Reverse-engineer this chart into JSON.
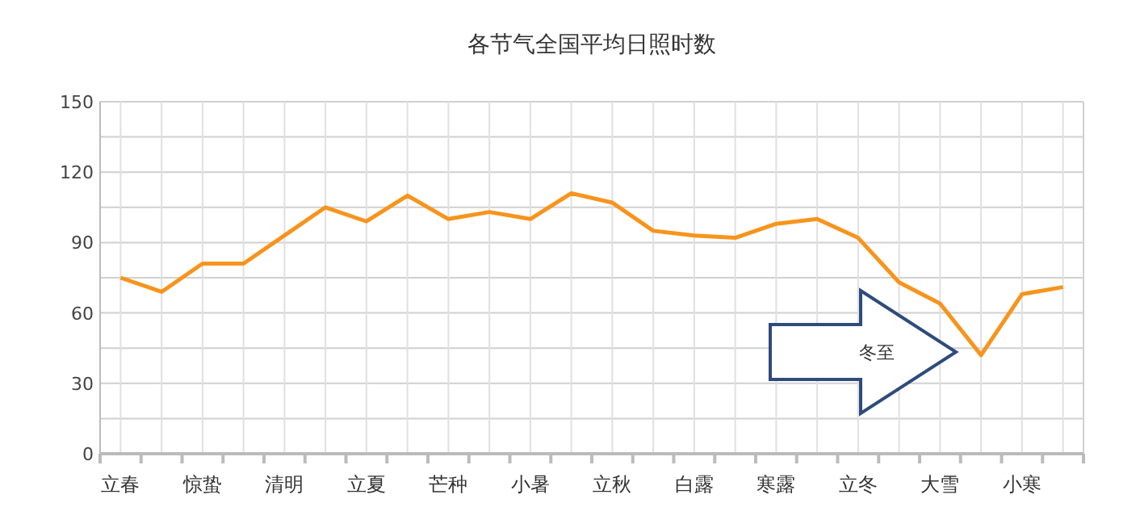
{
  "chart_data": {
    "type": "line",
    "title": "各节气全国平均日照时数",
    "categories": [
      "立春",
      null,
      "惊蛰",
      null,
      "清明",
      null,
      "立夏",
      null,
      "芒种",
      null,
      "小暑",
      null,
      "立秋",
      null,
      "白露",
      null,
      "寒露",
      null,
      "立冬",
      null,
      "大雪",
      null,
      "小寒",
      null
    ],
    "series": [
      {
        "color": "#f7941d",
        "values": [
          75,
          69,
          81,
          81,
          93,
          105,
          99,
          110,
          100,
          103,
          100,
          111,
          107,
          95,
          93,
          92,
          98,
          100,
          92,
          73,
          64,
          42,
          68,
          71
        ]
      }
    ],
    "ylim": [
      0,
      150
    ],
    "yticks": [
      0,
      {
        "value": 15,
        "label": null
      },
      30,
      {
        "value": 45,
        "label": null
      },
      60,
      {
        "value": 75,
        "label": null
      },
      90,
      {
        "value": 105,
        "label": null
      },
      120,
      {
        "value": 135,
        "label": null
      },
      150
    ],
    "grid": true,
    "marker": "none",
    "line_style": "solid",
    "annotations": [
      "冬至"
    ]
  }
}
